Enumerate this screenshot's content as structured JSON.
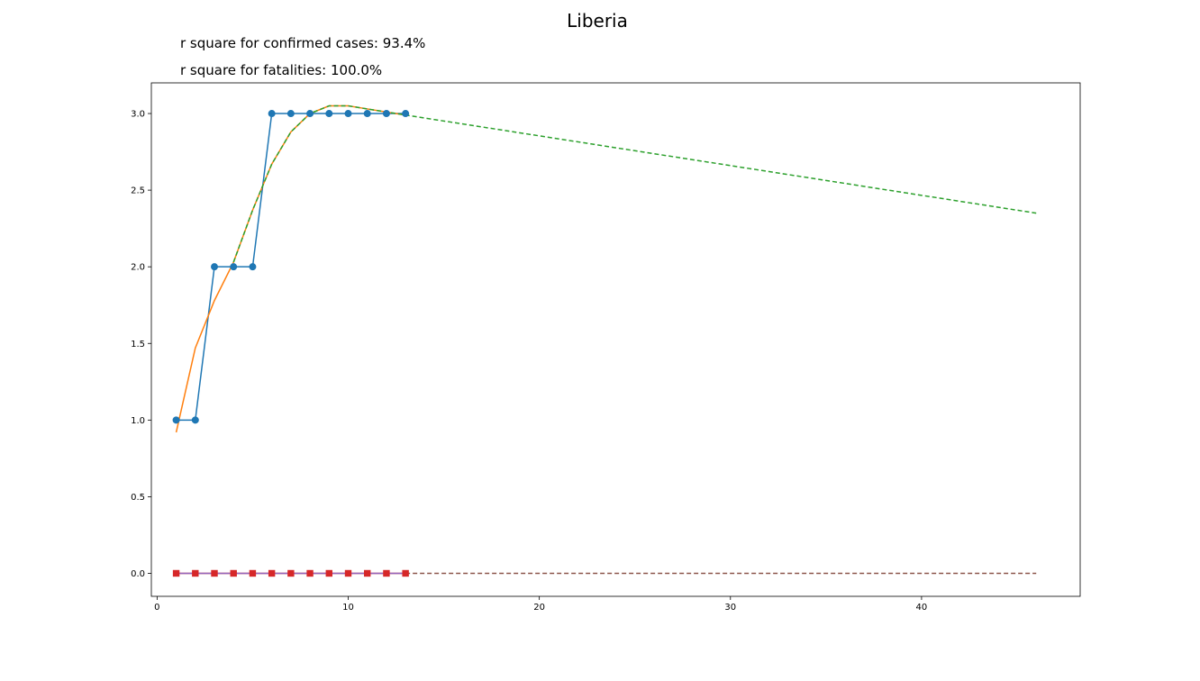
{
  "chart_data": {
    "type": "line",
    "title": "Liberia",
    "annotations": [
      "r square for confirmed cases: 93.4%",
      "r square for fatalities: 100.0%"
    ],
    "xlabel": "",
    "ylabel": "",
    "xlim": [
      -0.3,
      48.3
    ],
    "ylim": [
      -0.15,
      3.2
    ],
    "xticks": [
      0,
      10,
      20,
      30,
      40
    ],
    "yticks": [
      0.0,
      0.5,
      1.0,
      1.5,
      2.0,
      2.5,
      3.0
    ],
    "grid": false,
    "series": [
      {
        "color": "#1f77b4",
        "style": "solid",
        "marker": "circle",
        "x": [
          1,
          2,
          3,
          4,
          5,
          6,
          7,
          8,
          9,
          10,
          11,
          12,
          13
        ],
        "y": [
          1,
          1,
          2,
          2,
          2,
          3,
          3,
          3,
          3,
          3,
          3,
          3,
          3
        ]
      },
      {
        "color": "#ff7f0e",
        "style": "solid",
        "marker": "none",
        "x": [
          1,
          2,
          3,
          4,
          5,
          6,
          7,
          8,
          9,
          10,
          11,
          12,
          13
        ],
        "y": [
          0.92,
          1.47,
          1.78,
          2.03,
          2.37,
          2.67,
          2.88,
          3.0,
          3.05,
          3.05,
          3.03,
          3.01,
          2.99
        ]
      },
      {
        "color": "#2ca02c",
        "style": "dashed",
        "marker": "none",
        "x": [
          4,
          5,
          6,
          7,
          8,
          9,
          10,
          11,
          12,
          13,
          46
        ],
        "y": [
          2.03,
          2.37,
          2.67,
          2.88,
          3.0,
          3.05,
          3.05,
          3.03,
          3.01,
          2.99,
          2.35
        ]
      },
      {
        "color": "#d62728",
        "style": "solid",
        "marker": "square",
        "x": [
          1,
          2,
          3,
          4,
          5,
          6,
          7,
          8,
          9,
          10,
          11,
          12,
          13
        ],
        "y": [
          0,
          0,
          0,
          0,
          0,
          0,
          0,
          0,
          0,
          0,
          0,
          0,
          0
        ]
      },
      {
        "color": "#9467bd",
        "style": "solid",
        "marker": "none",
        "x": [
          1,
          13
        ],
        "y": [
          0,
          0
        ]
      },
      {
        "color": "#8c564b",
        "style": "dashed",
        "marker": "none",
        "x": [
          13,
          46
        ],
        "y": [
          0,
          0
        ]
      }
    ]
  }
}
